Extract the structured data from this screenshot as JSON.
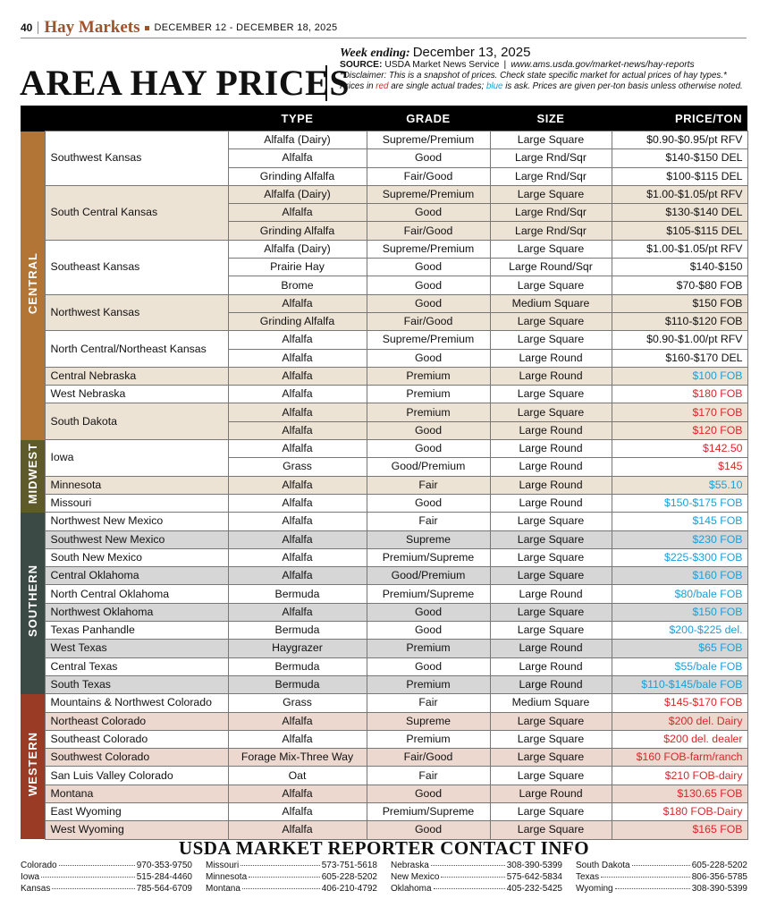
{
  "header": {
    "page_number": "40",
    "section": "Hay Markets",
    "dates": "DECEMBER 12 - DECEMBER 18, 2025"
  },
  "title": "AREA HAY PRICES",
  "info": {
    "week_label": "Week ending:",
    "week_date": "December 13, 2025",
    "source_label": "SOURCE:",
    "source": "USDA Market News Service",
    "url": "www.ams.usda.gov/market-news/hay-reports",
    "disclaimer": "*Disclaimer: This is a snapshot of prices. Check state specific market for actual prices of hay types.*",
    "note": [
      "Prices in ",
      "red",
      " are single actual trades; ",
      "blue",
      " is ask. Prices are given per-ton basis unless otherwise noted."
    ]
  },
  "table": {
    "columns": [
      "TYPE",
      "GRADE",
      "SIZE",
      "PRICE/TON"
    ],
    "regions": [
      {
        "name": "CENTRAL",
        "color": "#b27535",
        "shade": "#ede3d5",
        "groups": [
          {
            "location": "Southwest Kansas",
            "rows": [
              {
                "type": "Alfalfa (Dairy)",
                "grade": "Supreme/Premium",
                "size": "Large Square",
                "price": "$0.90-$0.95/pt RFV",
                "price_color": "#111111"
              },
              {
                "type": "Alfalfa",
                "grade": "Good",
                "size": "Large Rnd/Sqr",
                "price": "$140-$150 DEL",
                "price_color": "#111111"
              },
              {
                "type": "Grinding Alfalfa",
                "grade": "Fair/Good",
                "size": "Large Rnd/Sqr",
                "price": "$100-$115 DEL",
                "price_color": "#111111"
              }
            ]
          },
          {
            "location": "South Central Kansas",
            "rows": [
              {
                "type": "Alfalfa (Dairy)",
                "grade": "Supreme/Premium",
                "size": "Large Square",
                "price": "$1.00-$1.05/pt RFV",
                "price_color": "#111111"
              },
              {
                "type": "Alfalfa",
                "grade": "Good",
                "size": "Large Rnd/Sqr",
                "price": "$130-$140 DEL",
                "price_color": "#111111"
              },
              {
                "type": "Grinding Alfalfa",
                "grade": "Fair/Good",
                "size": "Large Rnd/Sqr",
                "price": "$105-$115 DEL",
                "price_color": "#111111"
              }
            ]
          },
          {
            "location": "Southeast Kansas",
            "rows": [
              {
                "type": "Alfalfa (Dairy)",
                "grade": "Supreme/Premium",
                "size": "Large Square",
                "price": "$1.00-$1.05/pt RFV",
                "price_color": "#111111"
              },
              {
                "type": "Prairie Hay",
                "grade": "Good",
                "size": "Large Round/Sqr",
                "price": "$140-$150",
                "price_color": "#111111"
              },
              {
                "type": "Brome",
                "grade": "Good",
                "size": "Large Square",
                "price": "$70-$80 FOB",
                "price_color": "#111111"
              }
            ]
          },
          {
            "location": "Northwest Kansas",
            "rows": [
              {
                "type": "Alfalfa",
                "grade": "Good",
                "size": "Medium Square",
                "price": "$150 FOB",
                "price_color": "#111111"
              },
              {
                "type": "Grinding Alfalfa",
                "grade": "Fair/Good",
                "size": "Large Square",
                "price": "$110-$120 FOB",
                "price_color": "#111111"
              }
            ]
          },
          {
            "location": "North Central/Northeast Kansas",
            "rows": [
              {
                "type": "Alfalfa",
                "grade": "Supreme/Premium",
                "size": "Large Square",
                "price": "$0.90-$1.00/pt RFV",
                "price_color": "#111111"
              },
              {
                "type": "Alfalfa",
                "grade": "Good",
                "size": "Large Round",
                "price": "$160-$170 DEL",
                "price_color": "#111111"
              }
            ]
          },
          {
            "location": "Central Nebraska",
            "rows": [
              {
                "type": "Alfalfa",
                "grade": "Premium",
                "size": "Large Round",
                "price": "$100 FOB",
                "price_color": "#1aa0d8"
              }
            ]
          },
          {
            "location": "West Nebraska",
            "rows": [
              {
                "type": "Alfalfa",
                "grade": "Premium",
                "size": "Large Square",
                "price": "$180 FOB",
                "price_color": "#d9262a"
              }
            ]
          },
          {
            "location": "South Dakota",
            "rows": [
              {
                "type": "Alfalfa",
                "grade": "Premium",
                "size": "Large Square",
                "price": "$170 FOB",
                "price_color": "#d9262a"
              },
              {
                "type": "Alfalfa",
                "grade": "Good",
                "size": "Large Round",
                "price": "$120 FOB",
                "price_color": "#d9262a"
              }
            ]
          }
        ]
      },
      {
        "name": "MIDWEST",
        "color": "#5e5a2a",
        "shade": "#ede3d5",
        "groups": [
          {
            "location": "Iowa",
            "rows": [
              {
                "type": "Alfalfa",
                "grade": "Good",
                "size": "Large Round",
                "price": "$142.50",
                "price_color": "#d9262a"
              },
              {
                "type": "Grass",
                "grade": "Good/Premium",
                "size": "Large Round",
                "price": "$145",
                "price_color": "#d9262a"
              }
            ]
          },
          {
            "location": "Minnesota",
            "rows": [
              {
                "type": "Alfalfa",
                "grade": "Fair",
                "size": "Large Round",
                "price": "$55.10",
                "price_color": "#1aa0d8"
              }
            ]
          },
          {
            "location": "Missouri",
            "rows": [
              {
                "type": "Alfalfa",
                "grade": "Good",
                "size": "Large Round",
                "price": "$150-$175 FOB",
                "price_color": "#1aa0d8"
              }
            ]
          }
        ]
      },
      {
        "name": "SOUTHERN",
        "color": "#3c4a45",
        "shade": "#d6d6d6",
        "groups": [
          {
            "location": "Northwest New Mexico",
            "rows": [
              {
                "type": "Alfalfa",
                "grade": "Fair",
                "size": "Large Square",
                "price": "$145 FOB",
                "price_color": "#1aa0d8"
              }
            ]
          },
          {
            "location": "Southwest New Mexico",
            "rows": [
              {
                "type": "Alfalfa",
                "grade": "Supreme",
                "size": "Large Square",
                "price": "$230 FOB",
                "price_color": "#1aa0d8"
              }
            ]
          },
          {
            "location": "South New Mexico",
            "rows": [
              {
                "type": "Alfalfa",
                "grade": "Premium/Supreme",
                "size": "Large Square",
                "price": "$225-$300 FOB",
                "price_color": "#1aa0d8"
              }
            ]
          },
          {
            "location": "Central Oklahoma",
            "rows": [
              {
                "type": "Alfalfa",
                "grade": "Good/Premium",
                "size": "Large Square",
                "price": "$160 FOB",
                "price_color": "#1aa0d8"
              }
            ]
          },
          {
            "location": "North Central Oklahoma",
            "rows": [
              {
                "type": "Bermuda",
                "grade": "Premium/Supreme",
                "size": "Large Round",
                "price": "$80/bale FOB",
                "price_color": "#1aa0d8"
              }
            ]
          },
          {
            "location": "Northwest Oklahoma",
            "rows": [
              {
                "type": "Alfalfa",
                "grade": "Good",
                "size": "Large Square",
                "price": "$150 FOB",
                "price_color": "#1aa0d8"
              }
            ]
          },
          {
            "location": "Texas Panhandle",
            "rows": [
              {
                "type": "Bermuda",
                "grade": "Good",
                "size": "Large Square",
                "price": "$200-$225 del.",
                "price_color": "#1aa0d8"
              }
            ]
          },
          {
            "location": "West Texas",
            "rows": [
              {
                "type": "Haygrazer",
                "grade": "Premium",
                "size": "Large Round",
                "price": "$65 FOB",
                "price_color": "#1aa0d8"
              }
            ]
          },
          {
            "location": "Central Texas",
            "rows": [
              {
                "type": "Bermuda",
                "grade": "Good",
                "size": "Large Round",
                "price": "$55/bale FOB",
                "price_color": "#1aa0d8"
              }
            ]
          },
          {
            "location": "South Texas",
            "rows": [
              {
                "type": "Bermuda",
                "grade": "Premium",
                "size": "Large Round",
                "price": "$110-$145/bale FOB",
                "price_color": "#1aa0d8"
              }
            ]
          }
        ]
      },
      {
        "name": "WESTERN",
        "color": "#9a3c25",
        "shade": "#ecd8cf",
        "groups": [
          {
            "location": "Mountains & Northwest Colorado",
            "rows": [
              {
                "type": "Grass",
                "grade": "Fair",
                "size": "Medium Square",
                "price": "$145-$170 FOB",
                "price_color": "#d9262a"
              }
            ]
          },
          {
            "location": "Northeast Colorado",
            "rows": [
              {
                "type": "Alfalfa",
                "grade": "Supreme",
                "size": "Large Square",
                "price": "$200 del. Dairy",
                "price_color": "#d9262a"
              }
            ]
          },
          {
            "location": "Southeast Colorado",
            "rows": [
              {
                "type": "Alfalfa",
                "grade": "Premium",
                "size": "Large Square",
                "price": "$200 del. dealer",
                "price_color": "#d9262a"
              }
            ]
          },
          {
            "location": "Southwest Colorado",
            "rows": [
              {
                "type": "Forage Mix-Three Way",
                "grade": "Fair/Good",
                "size": "Large Square",
                "price": "$160 FOB-farm/ranch",
                "price_color": "#d9262a"
              }
            ]
          },
          {
            "location": "San Luis Valley Colorado",
            "rows": [
              {
                "type": "Oat",
                "grade": "Fair",
                "size": "Large Square",
                "price": "$210 FOB-dairy",
                "price_color": "#d9262a"
              }
            ]
          },
          {
            "location": "Montana",
            "rows": [
              {
                "type": "Alfalfa",
                "grade": "Good",
                "size": "Large Round",
                "price": "$130.65 FOB",
                "price_color": "#d9262a"
              }
            ]
          },
          {
            "location": "East Wyoming",
            "rows": [
              {
                "type": "Alfalfa",
                "grade": "Premium/Supreme",
                "size": "Large Square",
                "price": "$180 FOB-Dairy",
                "price_color": "#d9262a"
              }
            ]
          },
          {
            "location": "West Wyoming",
            "rows": [
              {
                "type": "Alfalfa",
                "grade": "Good",
                "size": "Large Square",
                "price": "$165 FOB",
                "price_color": "#d9262a"
              }
            ]
          }
        ]
      }
    ]
  },
  "footer": {
    "title": "USDA MARKET REPORTER CONTACT INFO",
    "contacts": [
      [
        {
          "state": "Colorado",
          "phone": "970-353-9750"
        },
        {
          "state": "Iowa",
          "phone": "515-284-4460"
        },
        {
          "state": "Kansas",
          "phone": "785-564-6709"
        }
      ],
      [
        {
          "state": "Missouri",
          "phone": "573-751-5618"
        },
        {
          "state": "Minnesota",
          "phone": "605-228-5202"
        },
        {
          "state": "Montana",
          "phone": "406-210-4792"
        }
      ],
      [
        {
          "state": "Nebraska",
          "phone": "308-390-5399"
        },
        {
          "state": "New Mexico",
          "phone": "575-642-5834"
        },
        {
          "state": "Oklahoma",
          "phone": "405-232-5425"
        }
      ],
      [
        {
          "state": "South Dakota",
          "phone": "605-228-5202"
        },
        {
          "state": "Texas",
          "phone": "806-356-5785"
        },
        {
          "state": "Wyoming",
          "phone": "308-390-5399"
        }
      ]
    ]
  }
}
